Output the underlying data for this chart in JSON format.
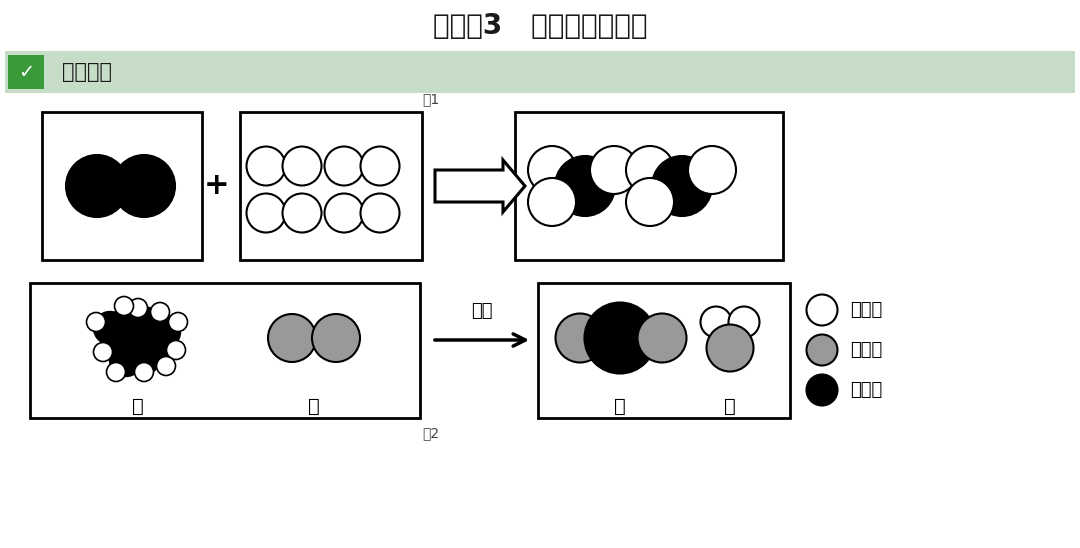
{
  "title": "命题点3   微观反应示意图",
  "title_fontsize": 20,
  "subtitle_text": "知识梳理",
  "subtitle_bg": "#c8ddc8",
  "bg_color": "#ffffff",
  "fig1_label": "图1",
  "fig2_label": "图2",
  "arrow_label": "点燃",
  "legend_items": [
    {
      "label": "氢原子",
      "color": "white",
      "edge": "black"
    },
    {
      "label": "氧原子",
      "color": "#999999",
      "edge": "black"
    },
    {
      "label": "碳原子",
      "color": "black",
      "edge": "black"
    }
  ]
}
